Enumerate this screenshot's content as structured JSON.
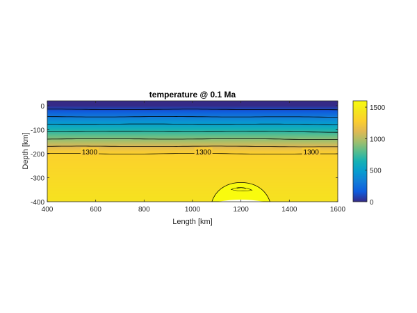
{
  "chart_data": {
    "type": "heatmap",
    "title": "temperature @ 0.1 Ma",
    "xlabel": "Length [km]",
    "ylabel": "Depth [km]",
    "xlim": [
      400,
      1600
    ],
    "ylim": [
      -400,
      20
    ],
    "xticks": [
      400,
      600,
      800,
      1000,
      1200,
      1400,
      1600
    ],
    "yticks": [
      0,
      -100,
      -200,
      -300,
      -400
    ],
    "colorbar": {
      "clim": [
        0,
        1600
      ],
      "ticks": [
        0,
        500,
        1000,
        1500
      ],
      "colormap": "parula"
    },
    "field": {
      "surface_temperature": 0,
      "lithosphere_base_depth": -200,
      "lithosphere_base_temperature": 1300,
      "deep_temperature": 1420,
      "plume": {
        "center_x": 1200,
        "top_depth": -320,
        "half_width_at_bottom": 120,
        "temperature": 1600
      }
    },
    "contour_levels": [
      100,
      300,
      500,
      700,
      900,
      1100,
      1300
    ],
    "contour_labels": [
      {
        "text": "1300",
        "x": 575,
        "y": -192
      },
      {
        "text": "1300",
        "x": 1045,
        "y": -192
      },
      {
        "text": "1300",
        "x": 1490,
        "y": -192
      }
    ]
  }
}
